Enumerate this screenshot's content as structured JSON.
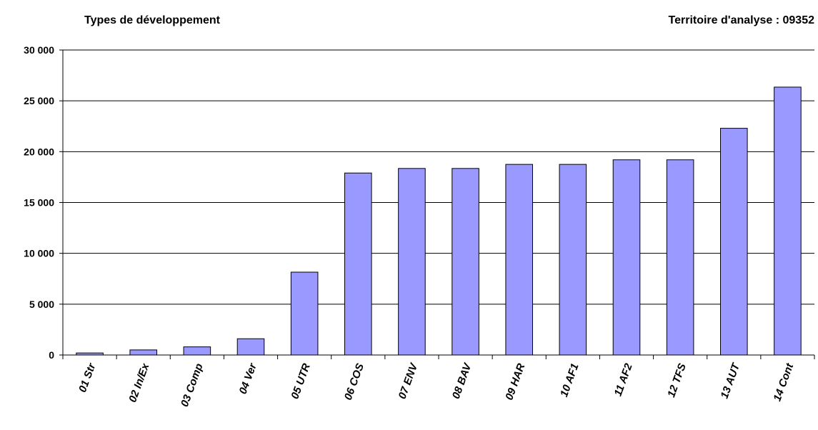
{
  "chart_data": {
    "type": "bar",
    "title": "Types de développement",
    "subtitle": "Territoire d'analyse : 09352",
    "categories": [
      "01 Str",
      "02 In/Ex",
      "03 Comp",
      "04 Ver",
      "05 UTR",
      "06 COS",
      "07 ENV",
      "08 BAV",
      "09 HAR",
      "10 AF1",
      "11 AF2",
      "12 TFS",
      "13 AUT",
      "14 Cont"
    ],
    "values": [
      200,
      500,
      800,
      1600,
      8150,
      17900,
      18350,
      18350,
      18750,
      18750,
      19200,
      19200,
      22300,
      26350
    ],
    "color": "#9999ff",
    "ylim": [
      0,
      30000
    ],
    "yticks": [
      {
        "value": 0,
        "label": "0"
      },
      {
        "value": 5000,
        "label": "5 000"
      },
      {
        "value": 10000,
        "label": "10 000"
      },
      {
        "value": 15000,
        "label": "15 000"
      },
      {
        "value": 20000,
        "label": "20 000"
      },
      {
        "value": 25000,
        "label": "25 000"
      },
      {
        "value": 30000,
        "label": "30 000"
      }
    ],
    "grid": true
  }
}
